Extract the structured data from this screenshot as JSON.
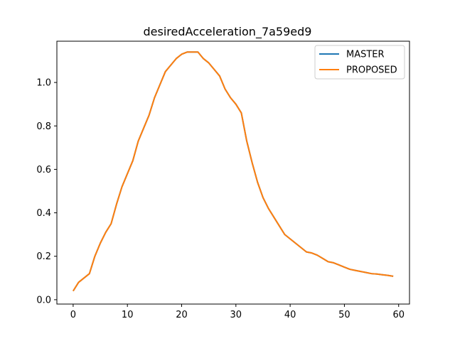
{
  "chart_data": {
    "type": "line",
    "title": "desiredAcceleration_7a59ed9",
    "xlabel": "",
    "ylabel": "",
    "xlim": [
      -3,
      62
    ],
    "ylim": [
      -0.02,
      1.19
    ],
    "xticks": [
      0,
      10,
      20,
      30,
      40,
      50,
      60
    ],
    "yticks": [
      0.0,
      0.2,
      0.4,
      0.6,
      0.8,
      1.0
    ],
    "xtick_labels": [
      "0",
      "10",
      "20",
      "30",
      "40",
      "50",
      "60"
    ],
    "ytick_labels": [
      "0.0",
      "0.2",
      "0.4",
      "0.6",
      "0.8",
      "1.0"
    ],
    "grid": false,
    "legend_position": "top-right",
    "x": [
      0,
      1,
      2,
      3,
      4,
      5,
      6,
      7,
      8,
      9,
      10,
      11,
      12,
      13,
      14,
      15,
      16,
      17,
      18,
      19,
      20,
      21,
      22,
      23,
      24,
      25,
      26,
      27,
      28,
      29,
      30,
      31,
      32,
      33,
      34,
      35,
      36,
      37,
      38,
      39,
      40,
      41,
      42,
      43,
      44,
      45,
      46,
      47,
      48,
      49,
      50,
      51,
      52,
      53,
      54,
      55,
      56,
      57,
      58,
      59
    ],
    "series": [
      {
        "name": "MASTER",
        "color": "#1f77b4",
        "values": [
          0.04,
          0.08,
          0.1,
          0.12,
          0.2,
          0.26,
          0.31,
          0.35,
          0.44,
          0.52,
          0.58,
          0.64,
          0.73,
          0.79,
          0.85,
          0.93,
          0.99,
          1.05,
          1.08,
          1.11,
          1.13,
          1.14,
          1.14,
          1.14,
          1.11,
          1.09,
          1.06,
          1.03,
          0.97,
          0.93,
          0.9,
          0.86,
          0.73,
          0.63,
          0.54,
          0.47,
          0.42,
          0.38,
          0.34,
          0.3,
          0.28,
          0.26,
          0.24,
          0.22,
          0.215,
          0.205,
          0.19,
          0.175,
          0.17,
          0.16,
          0.15,
          0.14,
          0.135,
          0.13,
          0.125,
          0.12,
          0.118,
          0.115,
          0.112,
          0.108
        ]
      },
      {
        "name": "PROPOSED",
        "color": "#ff7f0e",
        "values": [
          0.04,
          0.08,
          0.1,
          0.12,
          0.2,
          0.26,
          0.31,
          0.35,
          0.44,
          0.52,
          0.58,
          0.64,
          0.73,
          0.79,
          0.85,
          0.93,
          0.99,
          1.05,
          1.08,
          1.11,
          1.13,
          1.14,
          1.14,
          1.14,
          1.11,
          1.09,
          1.06,
          1.03,
          0.97,
          0.93,
          0.9,
          0.86,
          0.73,
          0.63,
          0.54,
          0.47,
          0.42,
          0.38,
          0.34,
          0.3,
          0.28,
          0.26,
          0.24,
          0.22,
          0.215,
          0.205,
          0.19,
          0.175,
          0.17,
          0.16,
          0.15,
          0.14,
          0.135,
          0.13,
          0.125,
          0.12,
          0.118,
          0.115,
          0.112,
          0.108
        ]
      }
    ]
  }
}
